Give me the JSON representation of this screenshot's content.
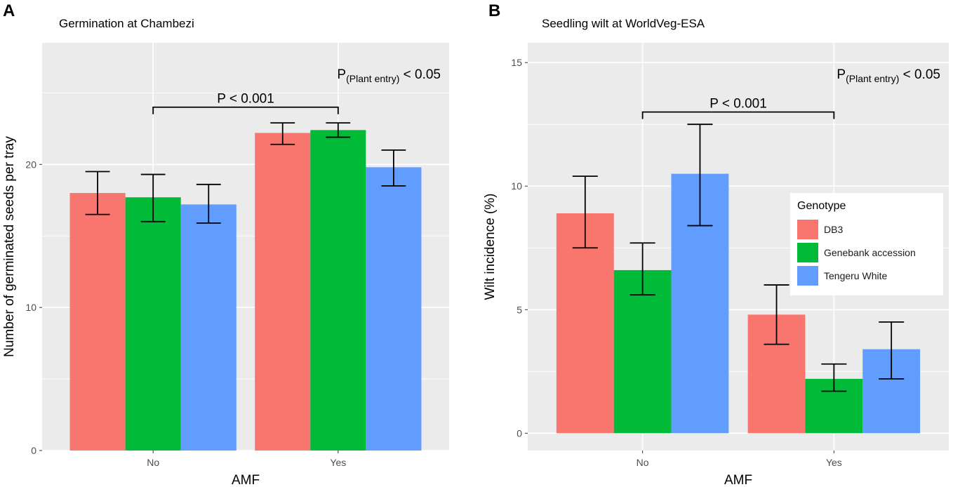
{
  "panels": [
    {
      "letter": "A",
      "title": "Germination at Chambezi"
    },
    {
      "letter": "B",
      "title": "Seedling wilt at WorldVeg-ESA"
    }
  ],
  "chart_data": [
    {
      "type": "bar",
      "title": "Germination at Chambezi",
      "xlabel": "AMF",
      "ylabel": "Number of germinated seeds per tray",
      "categories": [
        "No",
        "Yes"
      ],
      "ylim": [
        0,
        28.5
      ],
      "yticks": [
        0,
        10,
        20
      ],
      "series": [
        {
          "name": "DB3",
          "values": [
            18.0,
            22.2
          ],
          "err_low": [
            16.5,
            21.4
          ],
          "err_high": [
            19.5,
            22.9
          ]
        },
        {
          "name": "Genebank accession",
          "values": [
            17.7,
            22.4
          ],
          "err_low": [
            16.0,
            21.9
          ],
          "err_high": [
            19.3,
            22.9
          ]
        },
        {
          "name": "Tengeru White",
          "values": [
            17.2,
            19.8
          ],
          "err_low": [
            15.9,
            18.5
          ],
          "err_high": [
            18.6,
            21.0
          ]
        }
      ],
      "annotations": {
        "bracket_label": "P < 0.001",
        "bracket_y": 24.0,
        "entry_prefix": "P",
        "entry_subscript": "(Plant entry)",
        "entry_suffix": " < 0.05"
      }
    },
    {
      "type": "bar",
      "title": "Seedling wilt at WorldVeg-ESA",
      "xlabel": "AMF",
      "ylabel": "Wilt incidence (%)",
      "categories": [
        "No",
        "Yes"
      ],
      "ylim": [
        -0.7,
        15.8
      ],
      "yticks": [
        0,
        5,
        10,
        15
      ],
      "series": [
        {
          "name": "DB3",
          "values": [
            8.9,
            4.8
          ],
          "err_low": [
            7.5,
            3.6
          ],
          "err_high": [
            10.4,
            6.0
          ]
        },
        {
          "name": "Genebank accession",
          "values": [
            6.6,
            2.2
          ],
          "err_low": [
            5.6,
            1.7
          ],
          "err_high": [
            7.7,
            2.8
          ]
        },
        {
          "name": "Tengeru White",
          "values": [
            10.5,
            3.4
          ],
          "err_low": [
            8.4,
            2.2
          ],
          "err_high": [
            12.5,
            4.5
          ]
        }
      ],
      "annotations": {
        "bracket_label": "P < 0.001",
        "bracket_y": 13.0,
        "entry_prefix": "P",
        "entry_subscript": "(Plant entry)",
        "entry_suffix": " < 0.05"
      }
    }
  ],
  "legend": {
    "title": "Genotype",
    "items": [
      {
        "label": "DB3",
        "color": "#F8766D"
      },
      {
        "label": "Genebank accession",
        "color": "#00BA38"
      },
      {
        "label": "Tengeru White",
        "color": "#619CFF"
      }
    ]
  }
}
